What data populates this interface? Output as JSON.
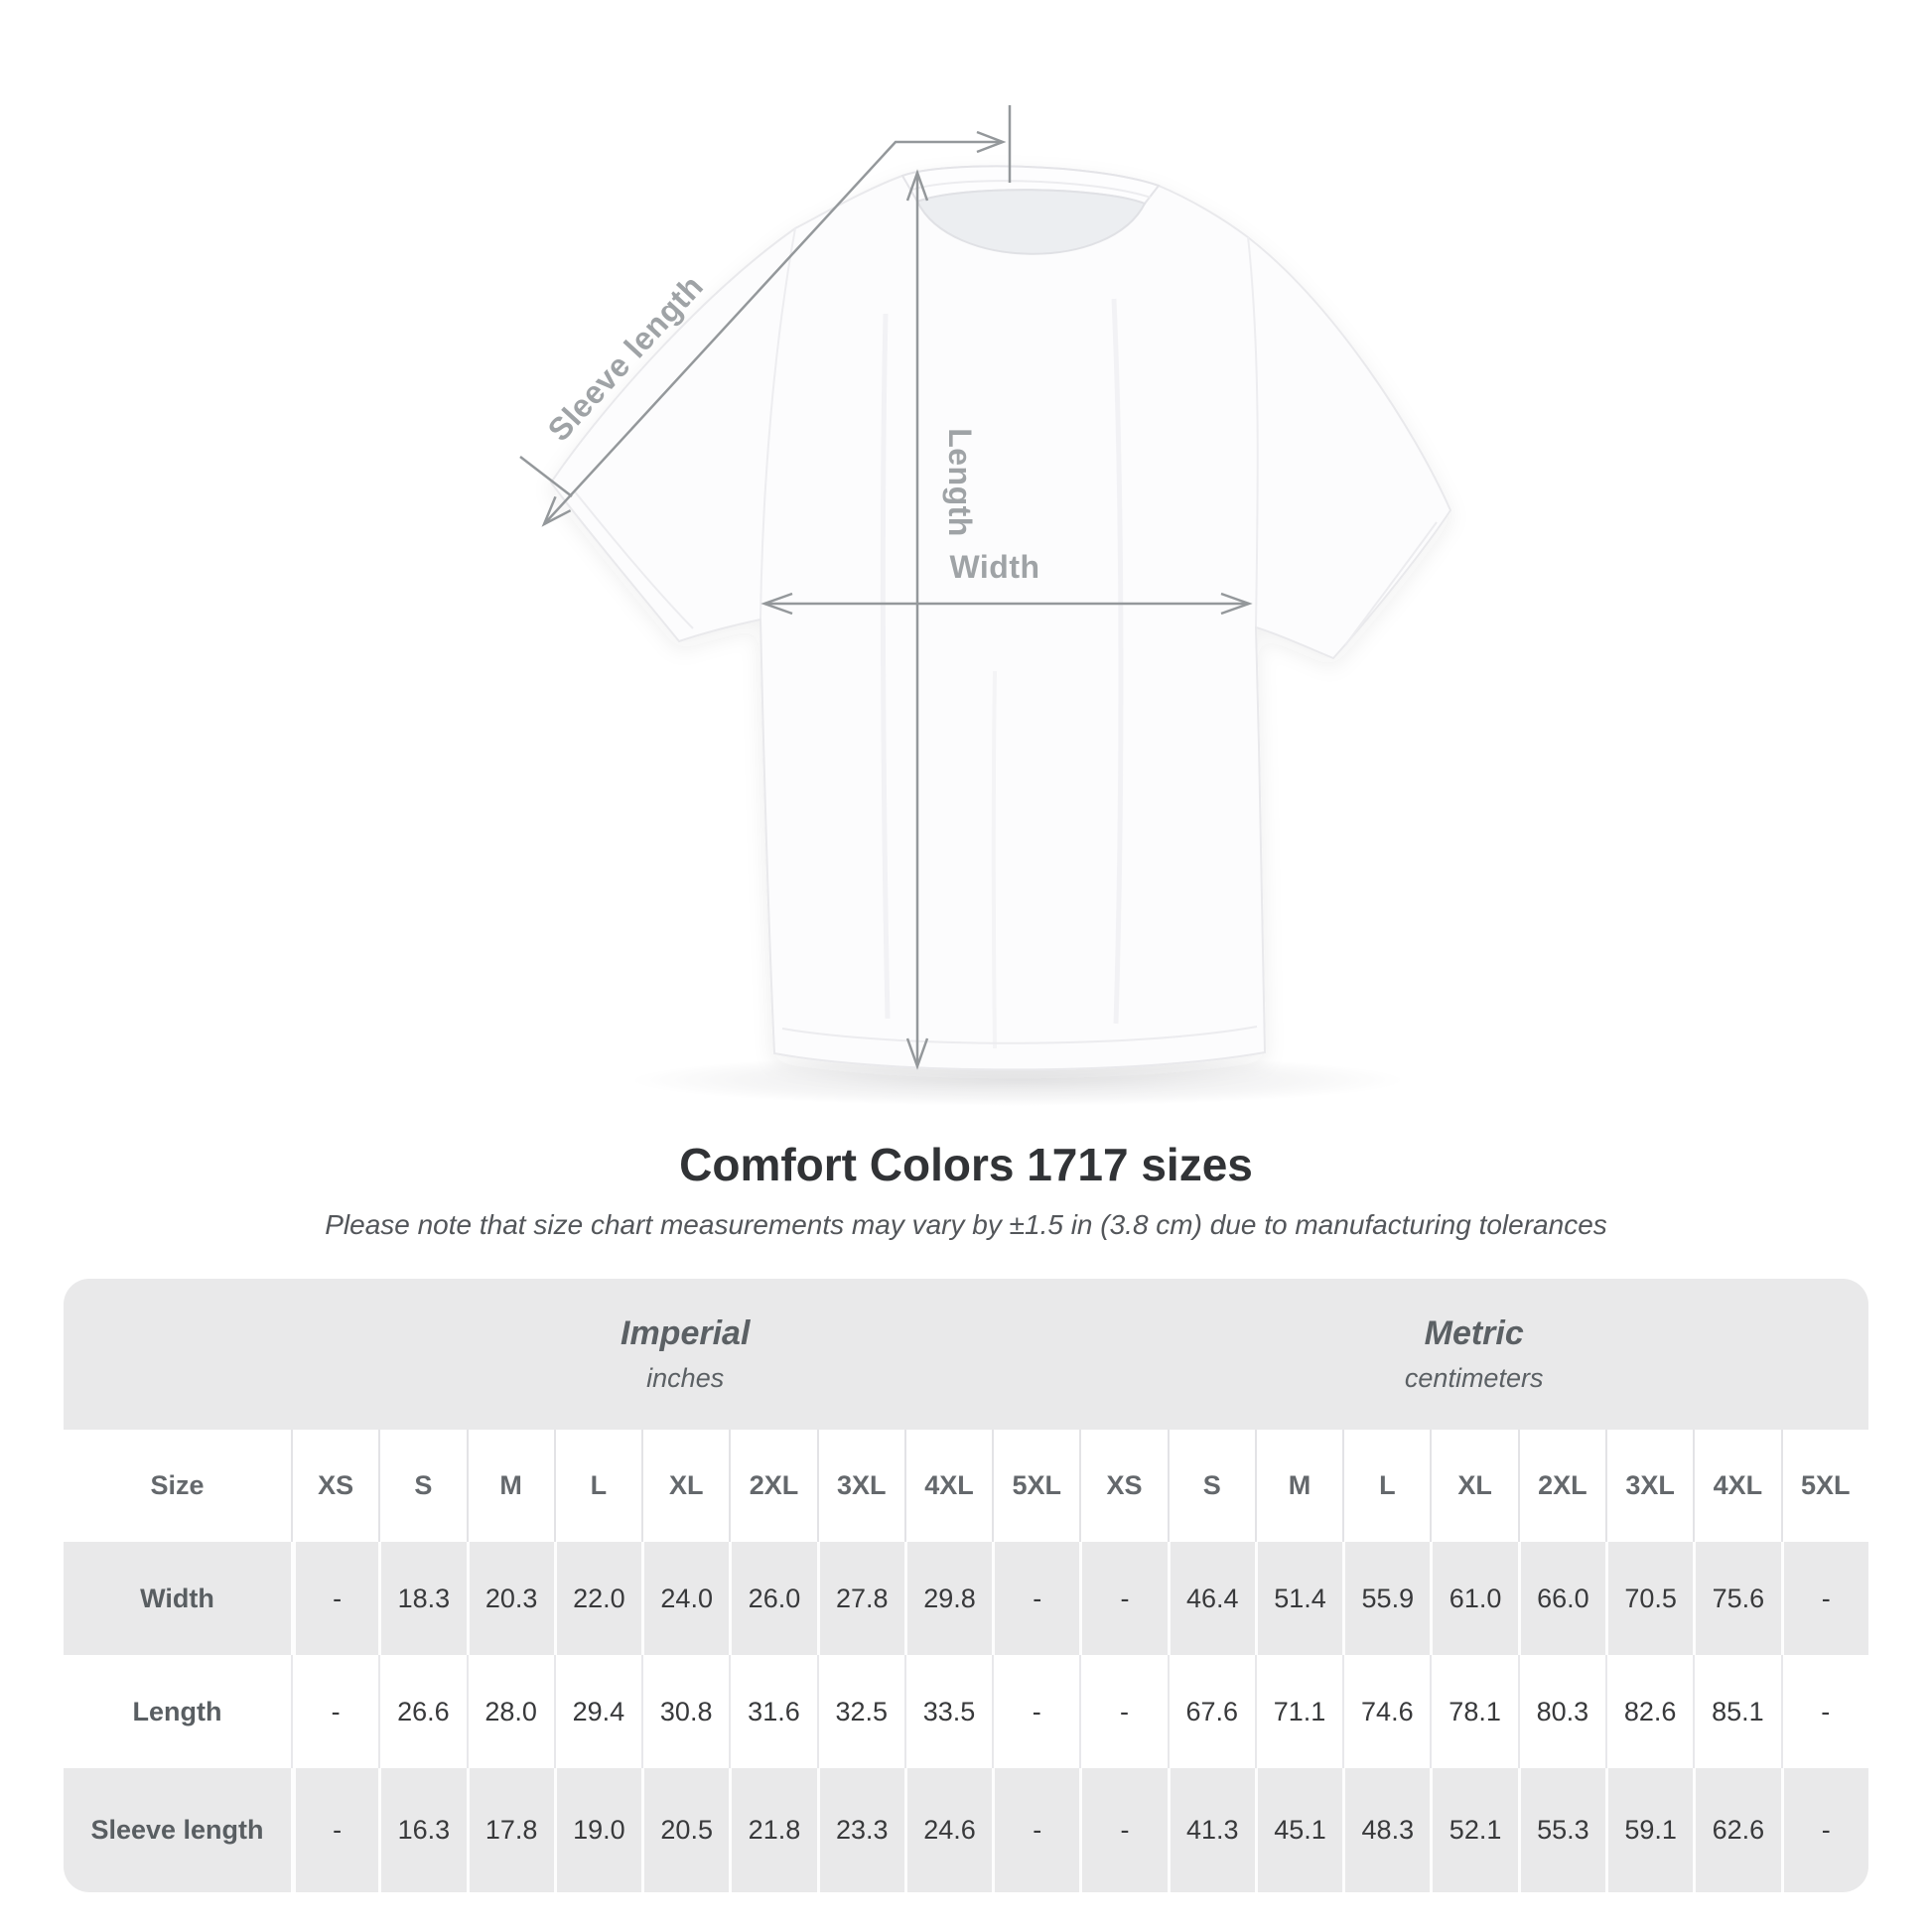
{
  "diagram": {
    "labels": {
      "sleeve_length": "Sleeve length",
      "length": "Length",
      "width": "Width"
    },
    "line_color": "#94989b",
    "label_color": "#9fa3a6"
  },
  "header": {
    "title": "Comfort Colors 1717 sizes",
    "subtitle": "Please note that size chart measurements may vary by ±1.5 in (3.8 cm) due to manufacturing tolerances"
  },
  "table": {
    "size_col_label": "Size",
    "groups": [
      {
        "label": "Imperial",
        "unit": "inches"
      },
      {
        "label": "Metric",
        "unit": "centimeters"
      }
    ],
    "sizes": [
      "XS",
      "S",
      "M",
      "L",
      "XL",
      "2XL",
      "3XL",
      "4XL",
      "5XL"
    ],
    "rows": [
      {
        "label": "Width",
        "imperial": [
          "-",
          "18.3",
          "20.3",
          "22.0",
          "24.0",
          "26.0",
          "27.8",
          "29.8",
          "-"
        ],
        "metric": [
          "-",
          "46.4",
          "51.4",
          "55.9",
          "61.0",
          "66.0",
          "70.5",
          "75.6",
          "-"
        ]
      },
      {
        "label": "Length",
        "imperial": [
          "-",
          "26.6",
          "28.0",
          "29.4",
          "30.8",
          "31.6",
          "32.5",
          "33.5",
          "-"
        ],
        "metric": [
          "-",
          "67.6",
          "71.1",
          "74.6",
          "78.1",
          "80.3",
          "82.6",
          "85.1",
          "-"
        ]
      },
      {
        "label": "Sleeve length",
        "imperial": [
          "-",
          "16.3",
          "17.8",
          "19.0",
          "20.5",
          "21.8",
          "23.3",
          "24.6",
          "-"
        ],
        "metric": [
          "-",
          "41.3",
          "45.1",
          "48.3",
          "52.1",
          "55.3",
          "59.1",
          "62.6",
          "-"
        ]
      }
    ],
    "row_bg_gray": "#e9e9ea",
    "row_bg_white": "#ffffff"
  },
  "chart_data": {
    "type": "table",
    "title": "Comfort Colors 1717 sizes",
    "subtitle": "Please note that size chart measurements may vary by ±1.5 in (3.8 cm) due to manufacturing tolerances",
    "column_groups": [
      {
        "name": "Imperial",
        "unit": "inches",
        "columns": [
          "XS",
          "S",
          "M",
          "L",
          "XL",
          "2XL",
          "3XL",
          "4XL",
          "5XL"
        ]
      },
      {
        "name": "Metric",
        "unit": "centimeters",
        "columns": [
          "XS",
          "S",
          "M",
          "L",
          "XL",
          "2XL",
          "3XL",
          "4XL",
          "5XL"
        ]
      }
    ],
    "series": [
      {
        "name": "Width",
        "imperial": [
          null,
          18.3,
          20.3,
          22.0,
          24.0,
          26.0,
          27.8,
          29.8,
          null
        ],
        "metric": [
          null,
          46.4,
          51.4,
          55.9,
          61.0,
          66.0,
          70.5,
          75.6,
          null
        ]
      },
      {
        "name": "Length",
        "imperial": [
          null,
          26.6,
          28.0,
          29.4,
          30.8,
          31.6,
          32.5,
          33.5,
          null
        ],
        "metric": [
          null,
          67.6,
          71.1,
          74.6,
          78.1,
          80.3,
          82.6,
          85.1,
          null
        ]
      },
      {
        "name": "Sleeve length",
        "imperial": [
          null,
          16.3,
          17.8,
          19.0,
          20.5,
          21.8,
          23.3,
          24.6,
          null
        ],
        "metric": [
          null,
          41.3,
          45.1,
          48.3,
          52.1,
          55.3,
          59.1,
          62.6,
          null
        ]
      }
    ]
  }
}
